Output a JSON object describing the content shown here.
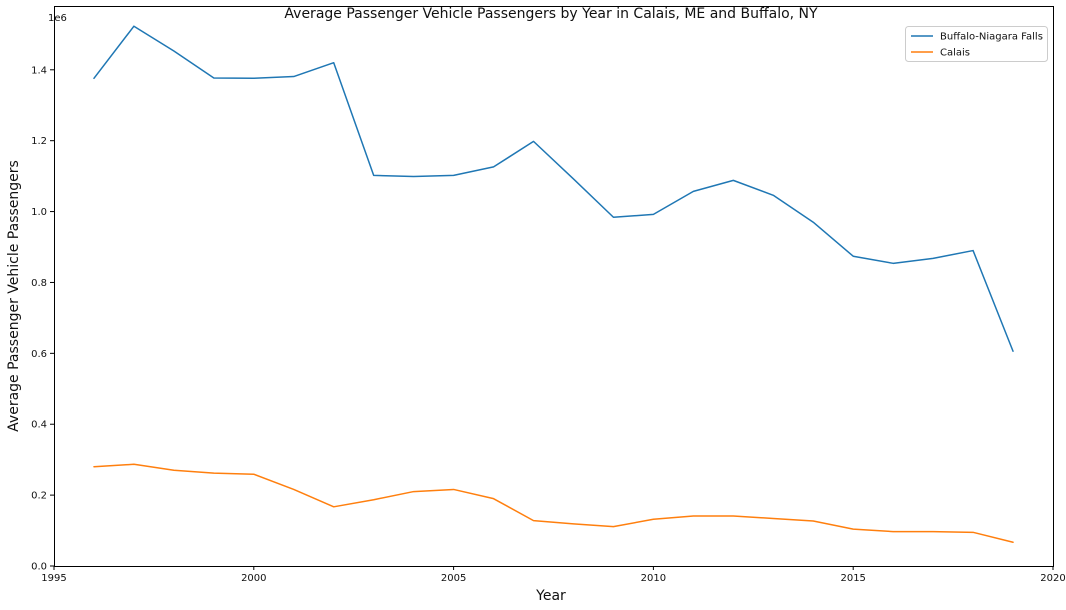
{
  "chart_data": {
    "type": "line",
    "title": "Average Passenger Vehicle Passengers by Year in Calais, ME and Buffalo, NY",
    "xlabel": "Year",
    "ylabel": "Average Passenger Vehicle Passengers",
    "y_offset_label": "1e6",
    "xlim": [
      1995,
      2020
    ],
    "ylim": [
      0,
      1.58
    ],
    "x_ticks": [
      1995,
      2000,
      2005,
      2010,
      2015,
      2020
    ],
    "y_ticks": [
      0.0,
      0.2,
      0.4,
      0.6,
      0.8,
      1.0,
      1.2,
      1.4
    ],
    "x_tick_labels": [
      "1995",
      "2000",
      "2005",
      "2010",
      "2015",
      "2020"
    ],
    "y_tick_labels": [
      "0.0",
      "0.2",
      "0.4",
      "0.6",
      "0.8",
      "1.0",
      "1.2",
      "1.4"
    ],
    "grid": false,
    "legend_position": "top-right",
    "x": [
      1996,
      1997,
      1998,
      1999,
      2000,
      2001,
      2002,
      2003,
      2004,
      2005,
      2006,
      2007,
      2008,
      2009,
      2010,
      2011,
      2012,
      2013,
      2014,
      2015,
      2016,
      2017,
      2018,
      2019
    ],
    "series": [
      {
        "name": "Buffalo-Niagara Falls",
        "color": "#1f77b4",
        "values": [
          1.376,
          1.523,
          1.453,
          1.377,
          1.376,
          1.381,
          1.42,
          1.102,
          1.099,
          1.102,
          1.126,
          1.198,
          1.092,
          0.984,
          0.992,
          1.057,
          1.088,
          1.046,
          0.97,
          0.874,
          0.854,
          0.868,
          0.89,
          0.606
        ]
      },
      {
        "name": "Calais",
        "color": "#ff7f0e",
        "values": [
          0.28,
          0.287,
          0.27,
          0.262,
          0.259,
          0.216,
          0.167,
          0.187,
          0.21,
          0.216,
          0.19,
          0.128,
          0.119,
          0.111,
          0.132,
          0.141,
          0.141,
          0.134,
          0.127,
          0.104,
          0.097,
          0.097,
          0.095,
          0.067
        ]
      }
    ]
  }
}
